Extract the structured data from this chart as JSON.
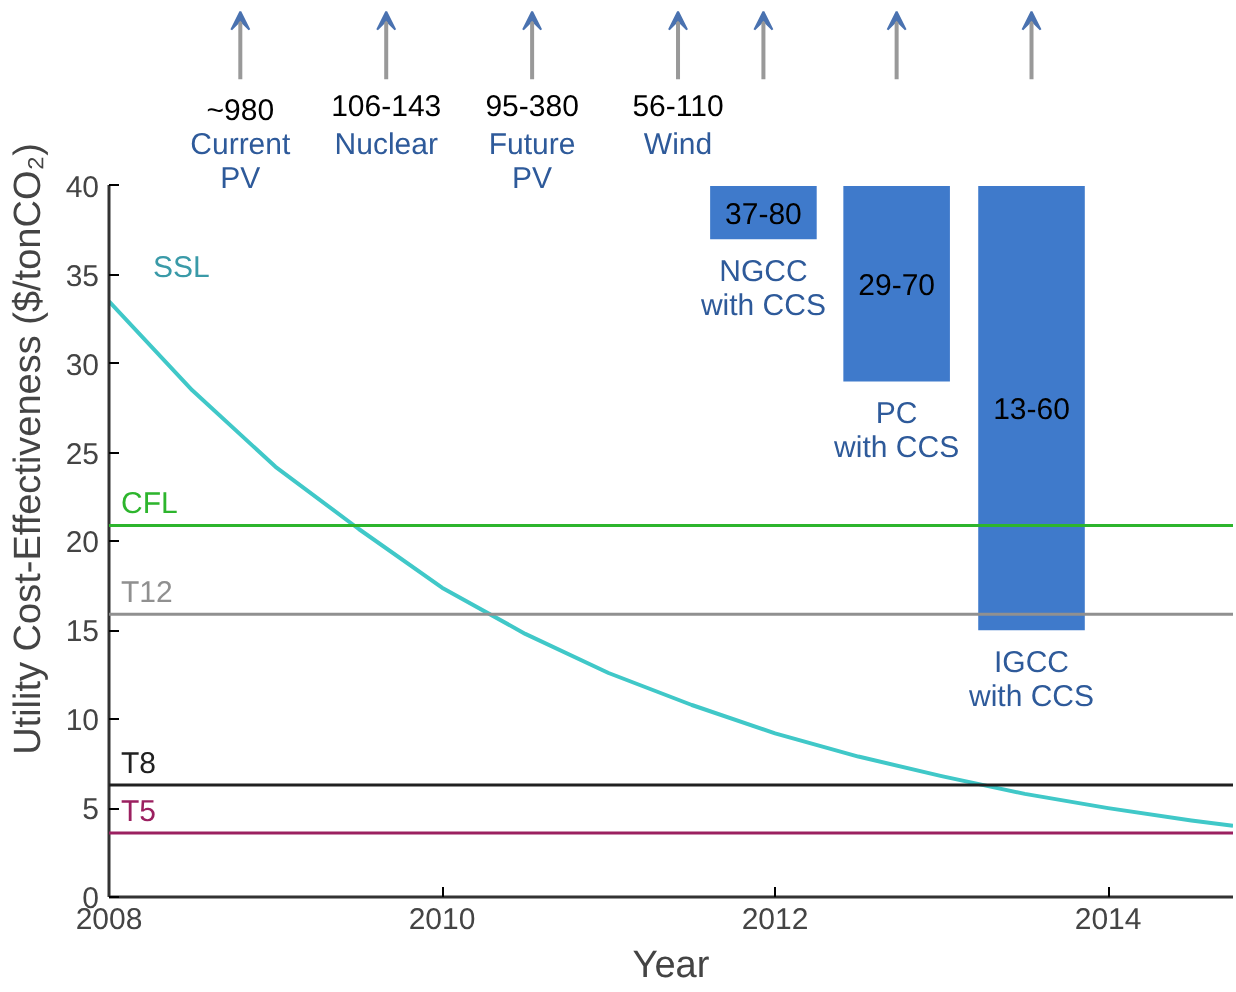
{
  "chart_data": {
    "type": "line",
    "xlabel": "Year",
    "ylabel": "Utility Cost-Effectiveness ($/tonCO₂)",
    "xlim": [
      2008,
      2014.75
    ],
    "ylim": [
      0,
      40
    ],
    "xticks": [
      2008,
      2010,
      2012,
      2014
    ],
    "yticks": [
      0,
      5,
      10,
      15,
      20,
      25,
      30,
      35,
      40
    ],
    "grid": false,
    "series": [
      {
        "name": "SSL",
        "color": "#40c8c8",
        "x": [
          2008,
          2008.5,
          2009,
          2009.5,
          2010,
          2010.5,
          2011,
          2011.5,
          2012,
          2012.5,
          2013,
          2013.5,
          2014,
          2014.5,
          2014.75
        ],
        "values": [
          33.5,
          28.5,
          24.2,
          20.7,
          17.4,
          14.8,
          12.6,
          10.8,
          9.2,
          7.9,
          6.8,
          5.8,
          5.0,
          4.3,
          4.0
        ]
      },
      {
        "type": "bar",
        "color": "#3f7acb",
        "x": [
          2011.93,
          2012.73,
          2013.54
        ],
        "base": [
          37,
          29,
          15
        ],
        "values": [
          3,
          11,
          25
        ],
        "value_labels": [
          "37-80",
          "29-70",
          "13-60"
        ]
      }
    ],
    "ref_lines": [
      {
        "axis": "y",
        "value": 20.9,
        "label": "CFL",
        "color": "#2db52d"
      },
      {
        "axis": "y",
        "value": 15.9,
        "label": "T12",
        "color": "#909090"
      },
      {
        "axis": "y",
        "value": 6.3,
        "label": "T8",
        "color": "#202020"
      },
      {
        "axis": "y",
        "value": 3.6,
        "label": "T5",
        "color": "#9b2060"
      }
    ],
    "annotations": [
      "~980\nCurrent\nPV",
      "106-143\nNuclear",
      "95-380\nFuture\nPV",
      "56-110\nWind",
      "NGCC\nwith CCS",
      "PC\nwith CCS",
      "IGCC\nwith CCS"
    ]
  }
}
